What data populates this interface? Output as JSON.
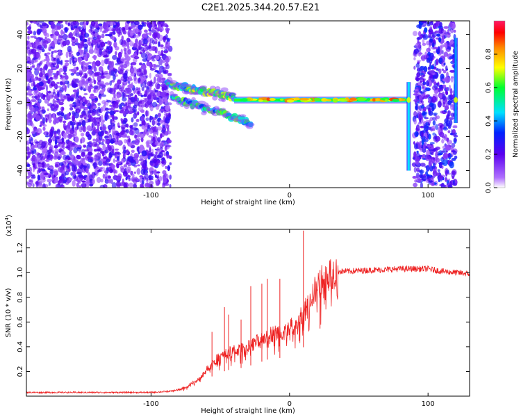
{
  "title": "C2E1.2025.344.20.57.E21",
  "chart_data": [
    {
      "type": "heatmap",
      "name": "spectrogram",
      "xlabel": "Height of straight line (km)",
      "ylabel": "Frequency (Hz)",
      "xlim": [
        -190,
        130
      ],
      "ylim": [
        -50,
        48
      ],
      "xticks": [
        -100,
        0,
        100
      ],
      "yticks": [
        -40,
        -20,
        0,
        20,
        40
      ],
      "colorbar": {
        "label": "Normalized spectral amplitude",
        "range": [
          0.0,
          1.0
        ],
        "ticks": [
          0.0,
          0.2,
          0.4,
          0.6,
          0.8
        ]
      },
      "features": [
        {
          "description": "broadband noise",
          "x_range": [
            -190,
            -86
          ],
          "freq_range": [
            -50,
            48
          ],
          "amplitude": 0.2
        },
        {
          "description": "upper branch",
          "x_range": [
            -88,
            -40
          ],
          "freq_start": 11,
          "freq_end": 3,
          "amplitude": 0.45
        },
        {
          "description": "lower branch",
          "x_range": [
            -85,
            -28
          ],
          "freq_start": 3,
          "freq_end": -12,
          "amplitude": 0.4
        },
        {
          "description": "main carrier line",
          "x_range": [
            -40,
            85
          ],
          "freq": 1.5,
          "amplitude": 0.75
        },
        {
          "description": "broadband noise",
          "x_range": [
            90,
            120
          ],
          "freq_range": [
            -50,
            48
          ],
          "amplitude": 0.25
        },
        {
          "description": "vertical spike",
          "x": 86,
          "freq_range": [
            -40,
            12
          ],
          "amplitude": 0.45
        },
        {
          "description": "vertical spike",
          "x": 120,
          "freq_range": [
            -12,
            38
          ],
          "amplitude": 0.4
        }
      ]
    },
    {
      "type": "line",
      "name": "snr",
      "xlabel": "Height of straight line (km)",
      "ylabel": "SNR (10 * v/v)",
      "yscale_label_base": "(x10",
      "yscale_label_exp": "4",
      "yscale_label_close": ")",
      "xlim": [
        -190,
        130
      ],
      "ylim": [
        0,
        1.35
      ],
      "xticks": [
        -100,
        0,
        100
      ],
      "yticks": [
        0.2,
        0.4,
        0.6,
        0.8,
        1.0,
        1.2
      ],
      "color": "#ee2222",
      "series": [
        {
          "name": "SNR",
          "x": [
            -190,
            -160,
            -130,
            -100,
            -85,
            -75,
            -65,
            -55,
            -45,
            -35,
            -25,
            -15,
            -5,
            0,
            5,
            10,
            15,
            20,
            25,
            30,
            35,
            40,
            60,
            80,
            100,
            110,
            120,
            130
          ],
          "y": [
            0.03,
            0.03,
            0.03,
            0.03,
            0.04,
            0.07,
            0.14,
            0.28,
            0.35,
            0.38,
            0.43,
            0.5,
            0.52,
            0.55,
            0.58,
            0.66,
            0.8,
            0.88,
            0.96,
            1.0,
            1.01,
            1.01,
            1.02,
            1.03,
            1.03,
            1.01,
            1.0,
            0.99
          ]
        }
      ],
      "spikes": [
        {
          "x": -56,
          "y": 0.52
        },
        {
          "x": -47,
          "y": 0.72
        },
        {
          "x": -44,
          "y": 0.66
        },
        {
          "x": -35,
          "y": 0.62
        },
        {
          "x": -28,
          "y": 0.89
        },
        {
          "x": -20,
          "y": 0.91
        },
        {
          "x": -16,
          "y": 0.95
        },
        {
          "x": -7,
          "y": 0.95
        },
        {
          "x": 10,
          "y": 1.34
        },
        {
          "x": 22,
          "y": 1.02
        }
      ]
    }
  ]
}
